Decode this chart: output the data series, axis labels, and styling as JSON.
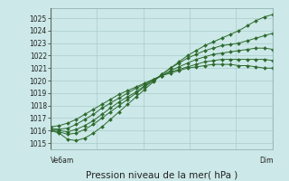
{
  "title": "Pression niveau de la mer( hPa )",
  "xlabel_left": "Ve6am",
  "xlabel_right": "Dim",
  "ylim": [
    1014.5,
    1025.8
  ],
  "yticks": [
    1015,
    1016,
    1017,
    1018,
    1019,
    1020,
    1021,
    1022,
    1023,
    1024,
    1025
  ],
  "xlim": [
    0,
    48
  ],
  "background_color": "#cce8e8",
  "grid_color": "#aacccc",
  "line_color": "#2d6a2d",
  "marker": "D",
  "markersize": 2.0,
  "linewidth": 0.7,
  "lines": [
    [
      1016.0,
      1015.8,
      1015.3,
      1015.2,
      1015.4,
      1015.8,
      1016.3,
      1016.9,
      1017.5,
      1018.1,
      1018.7,
      1019.3,
      1019.9,
      1020.5,
      1021.0,
      1021.5,
      1022.0,
      1022.4,
      1022.8,
      1023.1,
      1023.4,
      1023.7,
      1024.0,
      1024.4,
      1024.8,
      1025.1,
      1025.3
    ],
    [
      1016.0,
      1015.9,
      1015.7,
      1015.8,
      1016.1,
      1016.5,
      1017.0,
      1017.5,
      1018.0,
      1018.5,
      1019.0,
      1019.5,
      1020.0,
      1020.5,
      1021.0,
      1021.4,
      1021.8,
      1022.1,
      1022.4,
      1022.6,
      1022.8,
      1022.9,
      1023.0,
      1023.2,
      1023.4,
      1023.6,
      1023.8
    ],
    [
      1016.1,
      1016.0,
      1015.9,
      1016.1,
      1016.4,
      1016.8,
      1017.3,
      1017.8,
      1018.3,
      1018.7,
      1019.1,
      1019.6,
      1020.0,
      1020.4,
      1020.8,
      1021.1,
      1021.4,
      1021.7,
      1021.9,
      1022.1,
      1022.2,
      1022.3,
      1022.4,
      1022.5,
      1022.6,
      1022.6,
      1022.5
    ],
    [
      1016.2,
      1016.1,
      1016.2,
      1016.5,
      1016.9,
      1017.3,
      1017.8,
      1018.2,
      1018.6,
      1019.0,
      1019.4,
      1019.7,
      1020.1,
      1020.4,
      1020.7,
      1020.9,
      1021.1,
      1021.3,
      1021.5,
      1021.6,
      1021.7,
      1021.7,
      1021.7,
      1021.7,
      1021.7,
      1021.7,
      1021.6
    ],
    [
      1016.3,
      1016.4,
      1016.6,
      1016.9,
      1017.3,
      1017.7,
      1018.1,
      1018.5,
      1018.9,
      1019.2,
      1019.5,
      1019.8,
      1020.1,
      1020.4,
      1020.6,
      1020.8,
      1021.0,
      1021.1,
      1021.2,
      1021.3,
      1021.3,
      1021.3,
      1021.2,
      1021.2,
      1021.1,
      1021.0,
      1021.0
    ]
  ],
  "n_points": 27,
  "vline_left_label": "Ve6am",
  "vline_right_label": "Dim",
  "label_fontsize": 5.5,
  "title_fontsize": 7.5,
  "tick_fontsize": 5.5
}
